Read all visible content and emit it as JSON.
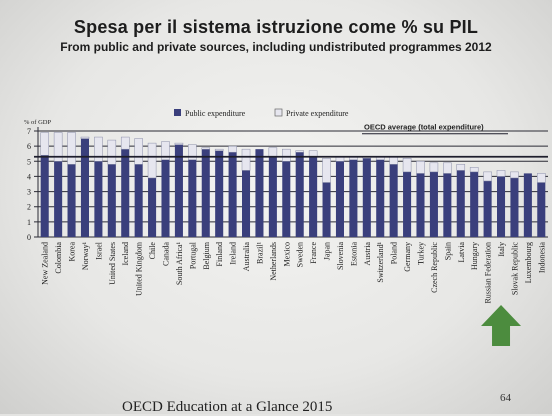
{
  "slide": {
    "title": "Spesa per il sistema istruzione come % su PIL",
    "subtitle": "From public and private sources, including undistributed programmes 2012",
    "page_number": "64",
    "footer": "OECD Education at a Glance 2015"
  },
  "colors": {
    "public": "#3a3f7c",
    "private": "#e6e6ef",
    "arrow": "#4c8c3e",
    "line": "#1e1e2c"
  },
  "chart_data": {
    "type": "bar",
    "stacked": true,
    "ylabel": "% of GDP",
    "ylim": [
      0,
      7
    ],
    "yticks": [
      0,
      1,
      2,
      3,
      4,
      5,
      6,
      7
    ],
    "grid": true,
    "legend": {
      "placement": "top-center",
      "entries": [
        "Public expenditure",
        "Private expenditure"
      ]
    },
    "reference_line": {
      "label": "OECD average (total expenditure)",
      "value": 5.3
    },
    "highlight": {
      "category": "Italy",
      "marker": "green-up-arrow"
    },
    "categories": [
      "New Zealand",
      "Colombia",
      "Korea",
      "Norway¹",
      "Israel",
      "United States",
      "Iceland",
      "United Kingdom",
      "Chile",
      "Canada",
      "South Africa¹",
      "Portugal",
      "Belgium",
      "Finland",
      "Ireland",
      "Australia",
      "Brazil¹",
      "Netherlands",
      "Mexico",
      "Sweden",
      "France",
      "Japan",
      "Slovenia",
      "Estonia",
      "Austria",
      "Switzerland¹",
      "Poland",
      "Germany",
      "Turkey",
      "Czech Republic",
      "Spain",
      "Latvia",
      "Hungary",
      "Russian Federation",
      "Italy",
      "Slovak Republic",
      "Luxembourg",
      "Indonesia"
    ],
    "series": [
      {
        "name": "Public expenditure",
        "values": [
          5.4,
          5.0,
          4.8,
          6.5,
          5.0,
          4.8,
          5.8,
          4.8,
          3.9,
          5.1,
          6.1,
          5.1,
          5.8,
          5.7,
          5.6,
          4.4,
          5.8,
          5.3,
          5.0,
          5.6,
          5.3,
          3.6,
          5.0,
          5.1,
          5.2,
          5.1,
          4.8,
          4.3,
          4.2,
          4.3,
          4.2,
          4.4,
          4.3,
          3.7,
          4.0,
          3.9,
          4.2,
          3.6
        ]
      },
      {
        "name": "Private expenditure",
        "values": [
          1.5,
          1.9,
          2.1,
          0.1,
          1.6,
          1.6,
          0.8,
          1.7,
          2.3,
          1.2,
          0.1,
          1.0,
          0.1,
          0.1,
          0.4,
          1.4,
          0.0,
          0.6,
          0.8,
          0.1,
          0.4,
          1.6,
          0.3,
          0.2,
          0.1,
          0.2,
          0.5,
          0.9,
          0.8,
          0.6,
          0.7,
          0.4,
          0.3,
          0.6,
          0.4,
          0.4,
          0.0,
          0.6
        ]
      }
    ]
  }
}
